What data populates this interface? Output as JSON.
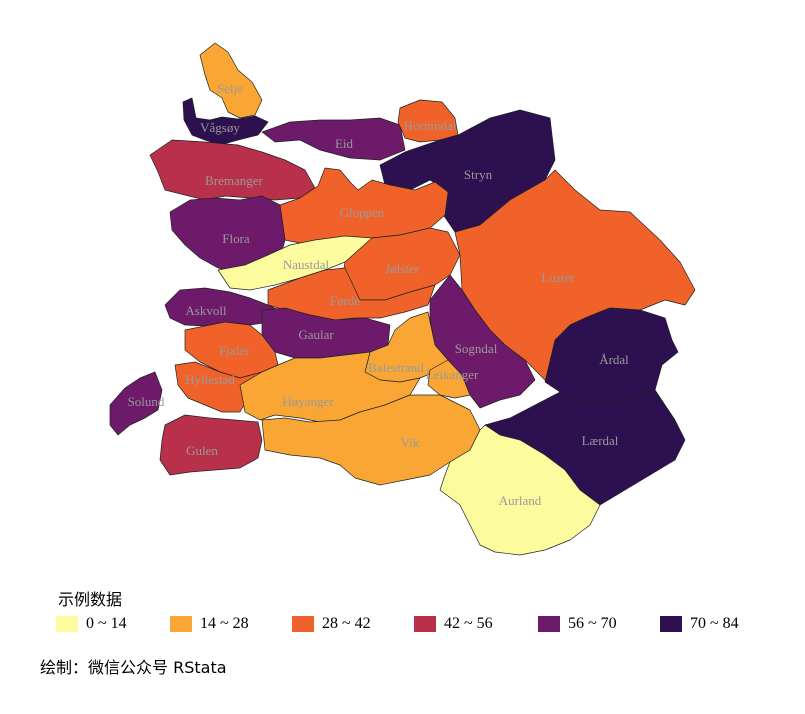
{
  "map": {
    "regions": [
      {
        "name": "Selje",
        "bin": 1
      },
      {
        "name": "Vågsøy",
        "bin": 5
      },
      {
        "name": "Eid",
        "bin": 4
      },
      {
        "name": "Hornindal",
        "bin": 2
      },
      {
        "name": "Stryn",
        "bin": 5
      },
      {
        "name": "Bremanger",
        "bin": 3
      },
      {
        "name": "Gloppen",
        "bin": 2
      },
      {
        "name": "Flora",
        "bin": 4
      },
      {
        "name": "Naustdal",
        "bin": 0
      },
      {
        "name": "Jølster",
        "bin": 2
      },
      {
        "name": "Luster",
        "bin": 2
      },
      {
        "name": "Askvoll",
        "bin": 4
      },
      {
        "name": "Førde",
        "bin": 2
      },
      {
        "name": "Gaular",
        "bin": 4
      },
      {
        "name": "Fjaler",
        "bin": 2
      },
      {
        "name": "Sogndal",
        "bin": 4
      },
      {
        "name": "Årdal",
        "bin": 5
      },
      {
        "name": "Hyllestad",
        "bin": 2
      },
      {
        "name": "Balestrand",
        "bin": 1
      },
      {
        "name": "Leikanger",
        "bin": 1
      },
      {
        "name": "Solund",
        "bin": 4
      },
      {
        "name": "Høyanger",
        "bin": 1
      },
      {
        "name": "Lærdal",
        "bin": 5
      },
      {
        "name": "Gulen",
        "bin": 3
      },
      {
        "name": "Vik",
        "bin": 1
      },
      {
        "name": "Aurland",
        "bin": 0
      }
    ]
  },
  "legend": {
    "title": "示例数据",
    "bins": [
      {
        "label": "0 ~ 14",
        "color": "#fcfc9e"
      },
      {
        "label": "14 ~ 28",
        "color": "#f9a634"
      },
      {
        "label": "28 ~ 42",
        "color": "#f0622a"
      },
      {
        "label": "42 ~ 56",
        "color": "#b9304a"
      },
      {
        "label": "56 ~ 70",
        "color": "#6e1a6a"
      },
      {
        "label": "70 ~ 84",
        "color": "#2d1050"
      }
    ]
  },
  "caption": "绘制：微信公众号 RStata"
}
